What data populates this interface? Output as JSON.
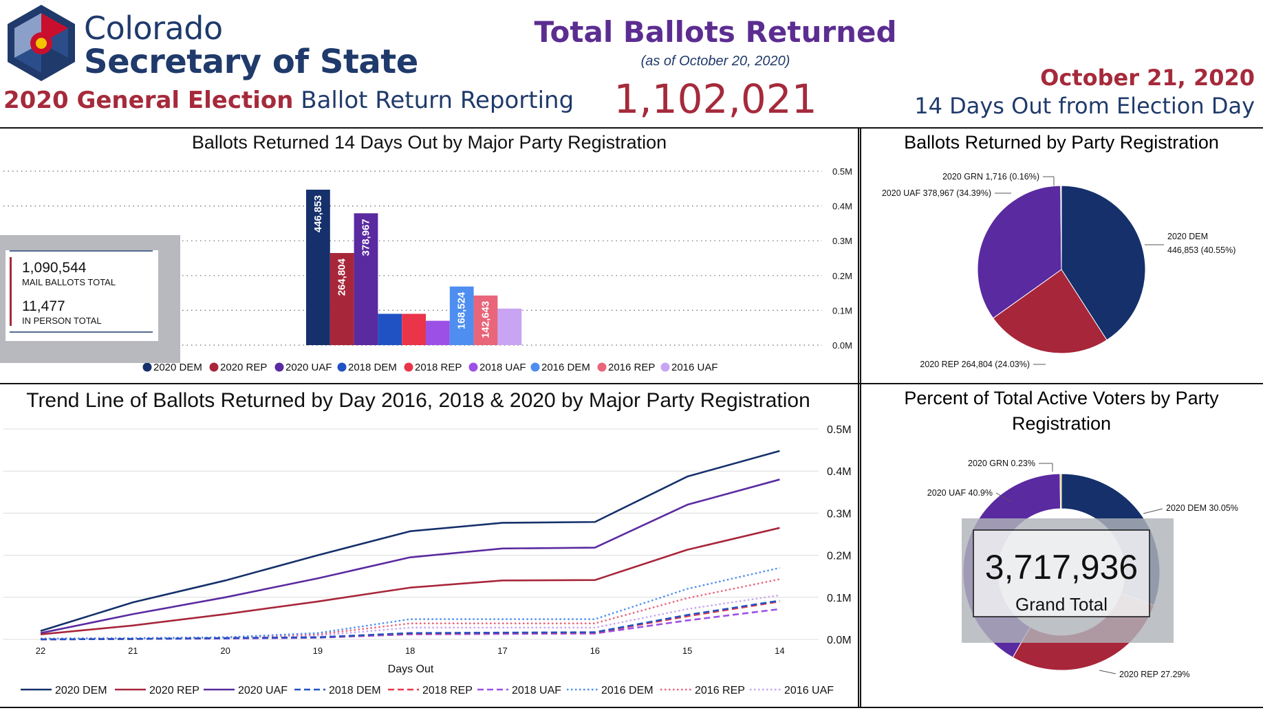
{
  "header": {
    "brand_line1": "Colorado",
    "brand_line2": "Secretary of State",
    "subtitle_bold": "2020 General Election",
    "subtitle_rest": " Ballot Return Reporting",
    "center_title": "Total Ballots Returned",
    "center_asof": "(as of October 20, 2020)",
    "center_total": "1,102,021",
    "right_date": "October 21, 2020",
    "right_days": "14 Days Out from Election Day"
  },
  "colors": {
    "dem2020": "#15306b",
    "rep2020": "#a8263a",
    "uaf2020": "#5a2aa0",
    "dem2018": "#2152c4",
    "rep2018": "#e9344a",
    "uaf2018": "#9d50e5",
    "dem2016": "#4e8ef0",
    "rep2016": "#e8657a",
    "uaf2016": "#c9a4f2",
    "grn2020": "#e8c92a",
    "title_red": "#a52a3b",
    "title_blue": "#1f3a6b",
    "title_purple": "#5c2d91"
  },
  "summary_box": {
    "mail_value": "1,090,544",
    "mail_label": "MAIL BALLOTS TOTAL",
    "inperson_value": "11,477",
    "inperson_label": "IN PERSON TOTAL"
  },
  "grand_total": {
    "value": "3,717,936",
    "label": "Grand Total"
  },
  "chart_data": [
    {
      "type": "bar",
      "title": "Ballots Returned 14 Days Out by Major Party Registration",
      "ylim": [
        0,
        500000
      ],
      "yticks": [
        "0.0M",
        "0.1M",
        "0.2M",
        "0.3M",
        "0.4M",
        "0.5M"
      ],
      "grid": "dotted",
      "legend_position": "bottom",
      "categories": [
        "2020 DEM",
        "2020 REP",
        "2020 UAF",
        "2018 DEM",
        "2018 REP",
        "2018 UAF",
        "2016 DEM",
        "2016 REP",
        "2016 UAF"
      ],
      "values": [
        446853,
        264804,
        378967,
        90000,
        90000,
        70000,
        168524,
        142643,
        105000
      ],
      "labels": [
        "446,853",
        "264,804",
        "378,967",
        "",
        "",
        "",
        "168,524",
        "142,643",
        ""
      ]
    },
    {
      "type": "pie",
      "title": "Ballots Returned by Party Registration",
      "slices": [
        {
          "label": "2020 DEM 446,853 (40.55%)",
          "value": 40.55
        },
        {
          "label": "2020 REP 264,804 (24.03%)",
          "value": 24.03
        },
        {
          "label": "2020 UAF 378,967 (34.39%)",
          "value": 34.39
        },
        {
          "label": "2020 GRN 1,716 (0.16%)",
          "value": 0.16
        }
      ]
    },
    {
      "type": "line",
      "title": "Trend Line of Ballots Returned by Day 2016, 2018 & 2020 by Major Party Registration",
      "xlabel": "Days Out",
      "x": [
        22,
        21,
        20,
        19,
        18,
        17,
        16,
        15,
        14
      ],
      "ylim": [
        0,
        500000
      ],
      "yticks": [
        "0.0M",
        "0.1M",
        "0.2M",
        "0.3M",
        "0.4M",
        "0.5M"
      ],
      "legend_position": "bottom",
      "series": [
        {
          "name": "2020 DEM",
          "values": [
            20000,
            88000,
            140000,
            200000,
            257000,
            277000,
            279000,
            387000,
            448000
          ]
        },
        {
          "name": "2020 REP",
          "values": [
            12000,
            33000,
            60000,
            90000,
            123000,
            140000,
            141000,
            213000,
            265000
          ]
        },
        {
          "name": "2020 UAF",
          "values": [
            15000,
            60000,
            100000,
            145000,
            195000,
            216000,
            218000,
            320000,
            380000
          ]
        },
        {
          "name": "2018 DEM",
          "values": [
            0,
            1000,
            3000,
            5000,
            15000,
            16000,
            17000,
            58000,
            92000
          ]
        },
        {
          "name": "2018 REP",
          "values": [
            0,
            1000,
            3000,
            5000,
            14000,
            15000,
            16000,
            55000,
            90000
          ]
        },
        {
          "name": "2018 UAF",
          "values": [
            0,
            1000,
            2000,
            4000,
            12000,
            13000,
            14000,
            45000,
            72000
          ]
        },
        {
          "name": "2016 DEM",
          "values": [
            2000,
            3000,
            5000,
            15000,
            48000,
            48000,
            48000,
            120000,
            170000
          ]
        },
        {
          "name": "2016 REP",
          "values": [
            2000,
            3000,
            5000,
            12000,
            38000,
            38000,
            38000,
            98000,
            143000
          ]
        },
        {
          "name": "2016 UAF",
          "values": [
            1000,
            2000,
            4000,
            9000,
            28000,
            28000,
            28000,
            72000,
            105000
          ]
        }
      ]
    },
    {
      "type": "pie",
      "subtype": "donut",
      "title": "Percent of Total Active Voters by Party Registration",
      "slices": [
        {
          "label": "2020 DEM 30.05%",
          "value": 30.05
        },
        {
          "label": "2020 REP 27.29%",
          "value": 27.29
        },
        {
          "label": "2020 UAF 40.9%",
          "value": 40.9
        },
        {
          "label": "2020 GRN 0.23%",
          "value": 0.23
        }
      ]
    }
  ]
}
